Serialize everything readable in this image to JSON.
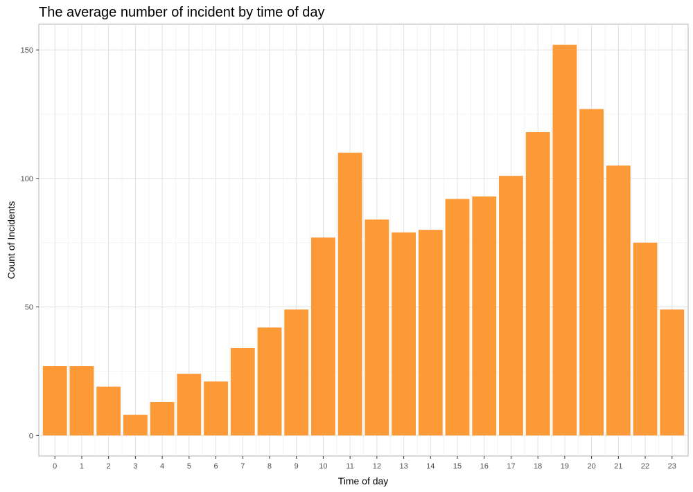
{
  "chart_data": {
    "type": "bar",
    "title": "The average number of incident by time of day",
    "xlabel": "Time of day",
    "ylabel": "Count of Incidents",
    "categories": [
      "0",
      "1",
      "2",
      "3",
      "4",
      "5",
      "6",
      "7",
      "8",
      "9",
      "10",
      "11",
      "12",
      "13",
      "14",
      "15",
      "16",
      "17",
      "18",
      "19",
      "20",
      "21",
      "22",
      "23"
    ],
    "values": [
      27,
      27,
      19,
      8,
      13,
      24,
      21,
      34,
      42,
      49,
      77,
      110,
      84,
      79,
      80,
      92,
      93,
      101,
      118,
      152,
      127,
      105,
      75,
      49
    ],
    "ylim": [
      -8,
      160
    ],
    "yticks": [
      0,
      50,
      100,
      150
    ],
    "grid": true,
    "legend": "none",
    "bar_color": "#FD9A38"
  }
}
